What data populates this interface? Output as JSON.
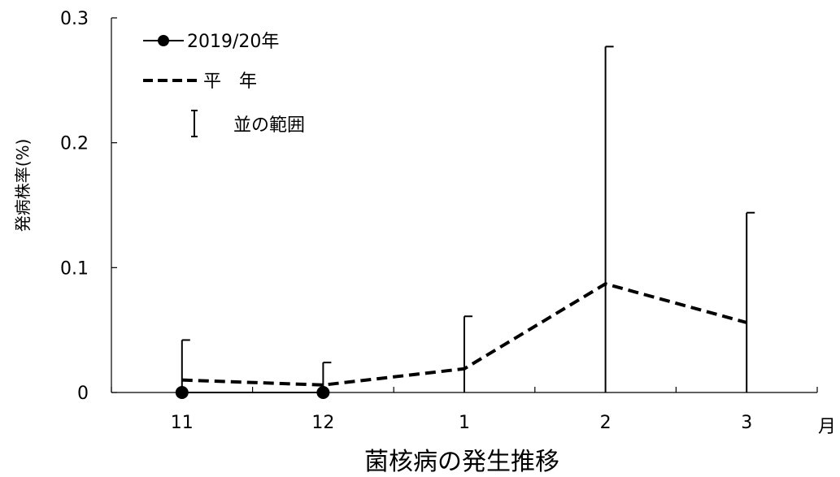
{
  "chart_data": {
    "type": "line",
    "title": "菌核病の発生推移",
    "xlabel": "月",
    "ylabel": "発病株率(%)",
    "categories": [
      "11",
      "12",
      "1",
      "2",
      "3"
    ],
    "yticks": [
      "0",
      "0.1",
      "0.2",
      "0.3"
    ],
    "ylim": [
      0,
      0.3
    ],
    "grid": false,
    "legend_position": "top-left",
    "series": [
      {
        "name": "2019/20年",
        "style": "solid-marker",
        "color": "#000000",
        "values": [
          0,
          0,
          null,
          null,
          null
        ]
      },
      {
        "name": "平　年",
        "style": "dashed",
        "color": "#000000",
        "values": [
          0.01,
          0.006,
          0.019,
          0.087,
          0.056
        ]
      }
    ],
    "range_legend": "並の範囲",
    "range_upper": [
      0.042,
      0.024,
      0.061,
      0.277,
      0.144
    ]
  }
}
